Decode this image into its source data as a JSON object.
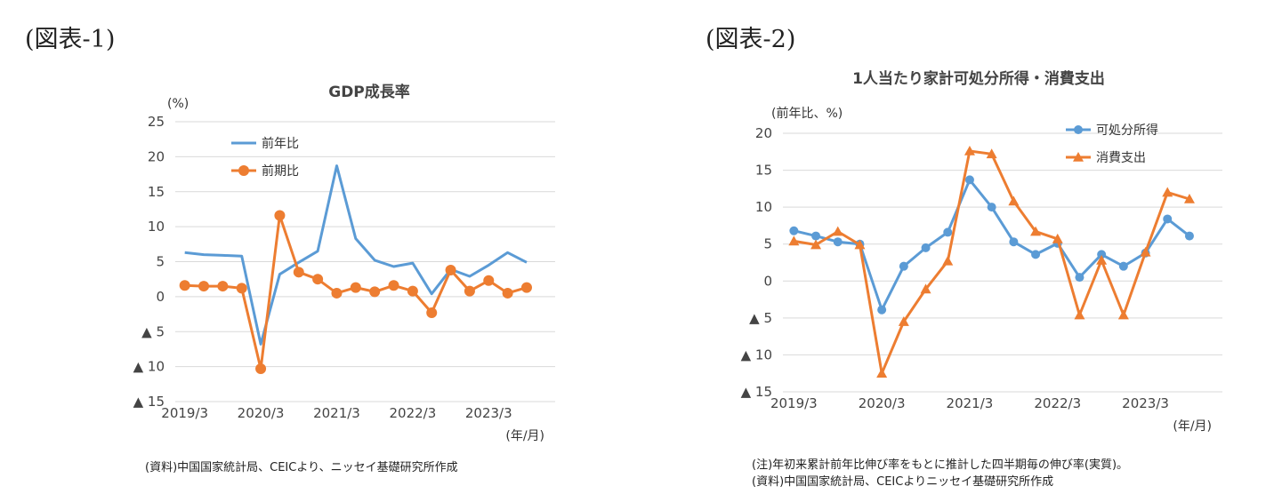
{
  "figures": [
    {
      "label": "(図表-1)",
      "unit_label": "(%)",
      "period_label": "(年/月)",
      "source_note": "(資料)中国国家統計局、CEICより、ニッセイ基礎研究所作成"
    },
    {
      "label": "(図表-2)",
      "unit_label": "(前年比、%)",
      "period_label": "(年/月)",
      "notes": [
        "(注)年初来累計前年比伸び率をもとに推計した四半期毎の伸び率(実質)。",
        "(資料)中国国家統計局、CEICよりニッセイ基礎研究所作成"
      ]
    }
  ],
  "chart_data": [
    {
      "type": "line",
      "title": "GDP成長率",
      "ylabel": "(%)",
      "xlabel": "(年/月)",
      "ylim": [
        -15,
        25
      ],
      "yticks": [
        25,
        20,
        15,
        10,
        5,
        0,
        -5,
        -10,
        -15
      ],
      "ytick_labels": [
        "25",
        "20",
        "15",
        "10",
        "5",
        "0",
        "▲ 5",
        "▲ 10",
        "▲ 15"
      ],
      "x": [
        "2019/3",
        "2019/6",
        "2019/9",
        "2019/12",
        "2020/3",
        "2020/6",
        "2020/9",
        "2020/12",
        "2021/3",
        "2021/6",
        "2021/9",
        "2021/12",
        "2022/3",
        "2022/6",
        "2022/9",
        "2022/12",
        "2023/3",
        "2023/6",
        "2023/9",
        "2023/12"
      ],
      "x_tick_labels": [
        "2019/3",
        "2020/3",
        "2021/3",
        "2022/3",
        "2023/3"
      ],
      "grid": true,
      "legend_position": "top-left",
      "series": [
        {
          "name": "前年比",
          "color": "#5b9bd5",
          "marker": "none",
          "values": [
            6.3,
            6.0,
            5.9,
            5.8,
            -6.8,
            3.2,
            4.9,
            6.5,
            18.7,
            8.3,
            5.2,
            4.3,
            4.8,
            0.4,
            3.9,
            2.9,
            4.5,
            6.3,
            4.9,
            null
          ]
        },
        {
          "name": "前期比",
          "color": "#ed7d31",
          "marker": "circle",
          "values": [
            1.6,
            1.5,
            1.5,
            1.2,
            -10.3,
            11.6,
            3.5,
            2.5,
            0.5,
            1.3,
            0.7,
            1.6,
            0.8,
            -2.3,
            3.8,
            0.8,
            2.3,
            0.5,
            1.3,
            null
          ]
        }
      ]
    },
    {
      "type": "line",
      "title": "1人当たり家計可処分所得・消費支出",
      "ylabel": "(前年比、%)",
      "xlabel": "(年/月)",
      "ylim": [
        -15,
        20
      ],
      "yticks": [
        20,
        15,
        10,
        5,
        0,
        -5,
        -10,
        -15
      ],
      "ytick_labels": [
        "20",
        "15",
        "10",
        "5",
        "0",
        "▲ 5",
        "▲ 10",
        "▲ 15"
      ],
      "x": [
        "2019/3",
        "2019/6",
        "2019/9",
        "2019/12",
        "2020/3",
        "2020/6",
        "2020/9",
        "2020/12",
        "2021/3",
        "2021/6",
        "2021/9",
        "2021/12",
        "2022/3",
        "2022/6",
        "2022/9",
        "2022/12",
        "2023/3",
        "2023/6",
        "2023/9",
        "2023/12"
      ],
      "x_tick_labels": [
        "2019/3",
        "2020/3",
        "2021/3",
        "2022/3",
        "2023/3"
      ],
      "grid": true,
      "legend_position": "top-right",
      "series": [
        {
          "name": "可処分所得",
          "color": "#5b9bd5",
          "marker": "circle",
          "values": [
            6.8,
            6.1,
            5.3,
            5.0,
            -3.9,
            2.0,
            4.5,
            6.6,
            13.7,
            10.0,
            5.3,
            3.6,
            5.1,
            0.5,
            3.6,
            2.0,
            3.8,
            8.4,
            6.1,
            null
          ]
        },
        {
          "name": "消費支出",
          "color": "#ed7d31",
          "marker": "triangle",
          "values": [
            5.4,
            4.9,
            6.7,
            4.9,
            -12.5,
            -5.5,
            -1.1,
            2.7,
            17.6,
            17.2,
            10.8,
            6.7,
            5.7,
            -4.6,
            2.8,
            -4.6,
            3.9,
            12.0,
            11.1,
            null
          ]
        }
      ]
    }
  ]
}
